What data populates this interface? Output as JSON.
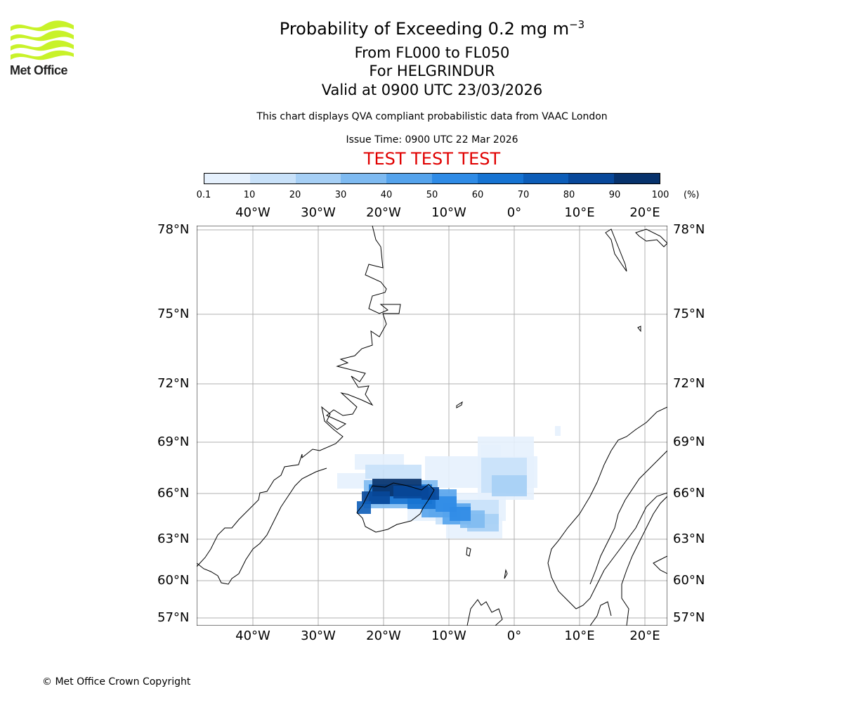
{
  "logo": {
    "text": "Met Office",
    "color": "#c8f229"
  },
  "header": {
    "title_prefix": "Probability of Exceeding 0.2 mg m",
    "title_exponent": "−3",
    "subtitle_levels": "From FL000 to FL050",
    "subtitle_location": "For HELGRINDUR",
    "subtitle_valid": "Valid at 0900 UTC 23/03/2026",
    "disclaimer": "This chart displays QVA compliant probabilistic data from VAAC London",
    "issue_time": "Issue Time: 0900 UTC 22 Mar 2026",
    "test_banner": "TEST TEST TEST",
    "test_color": "#e00000"
  },
  "colorbar": {
    "unit": "(%)",
    "ticks": [
      "0.1",
      "10",
      "20",
      "30",
      "40",
      "50",
      "60",
      "70",
      "80",
      "90",
      "100"
    ],
    "colors": [
      "#e6f1fd",
      "#c8e1f9",
      "#a6cff5",
      "#7ebaf1",
      "#55a3ec",
      "#2f8be6",
      "#1673d2",
      "#0d5db8",
      "#08489a",
      "#07326c"
    ]
  },
  "map": {
    "lon_labels": [
      "40°W",
      "30°W",
      "20°W",
      "10°W",
      "0°",
      "10°E",
      "20°E"
    ],
    "lat_labels": [
      "78°N",
      "75°N",
      "72°N",
      "69°N",
      "66°N",
      "63°N",
      "60°N",
      "57°N"
    ]
  },
  "footer": {
    "copyright": "© Met Office Crown Copyright"
  }
}
